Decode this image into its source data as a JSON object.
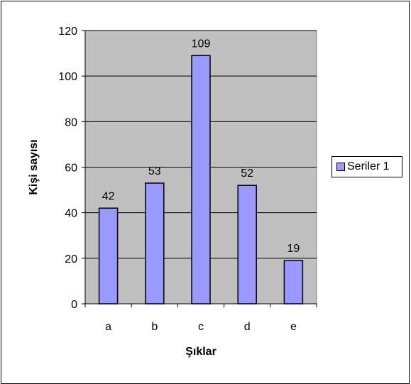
{
  "chart_data": {
    "type": "bar",
    "categories": [
      "a",
      "b",
      "c",
      "d",
      "e"
    ],
    "series": [
      {
        "name": "Seriler 1",
        "values": [
          42,
          53,
          109,
          52,
          19
        ],
        "color": "#9999ff"
      }
    ],
    "data_labels": [
      "42",
      "53",
      "109",
      "52",
      "19"
    ],
    "xlabel": "Şıklar",
    "ylabel": "Kişi sayısı",
    "ylim": [
      0,
      120
    ],
    "yticks": [
      "0",
      "20",
      "40",
      "60",
      "80",
      "100",
      "120"
    ],
    "grid": true,
    "legend": "right",
    "plot_background": "#c0c0c0",
    "gridline_color": "#000000"
  }
}
